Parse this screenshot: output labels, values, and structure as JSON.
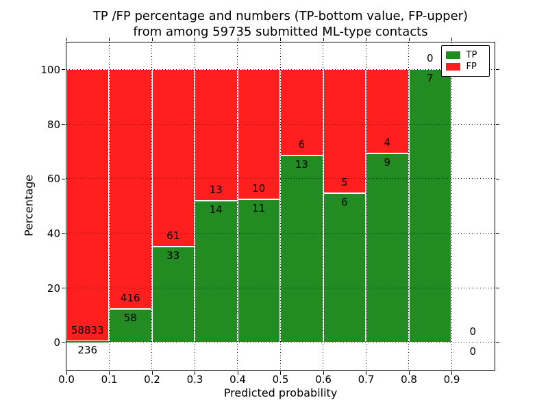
{
  "chart_data": {
    "type": "bar",
    "stacked": true,
    "title_line1": "TP /FP percentage and numbers (TP-bottom value, FP-upper)",
    "title_line2": "from among 59735 submitted ML-type contacts",
    "xlabel": "Predicted probability",
    "ylabel": "Percentage",
    "xlim": [
      0.0,
      1.0
    ],
    "ylim": [
      -10,
      110
    ],
    "xticks": [
      "0.0",
      "0.1",
      "0.2",
      "0.3",
      "0.4",
      "0.5",
      "0.6",
      "0.7",
      "0.8",
      "0.9"
    ],
    "xtick_values": [
      0.0,
      0.1,
      0.2,
      0.3,
      0.4,
      0.5,
      0.6,
      0.7,
      0.8,
      0.9
    ],
    "yticks": [
      0,
      20,
      40,
      60,
      80,
      100
    ],
    "grid": "dotted",
    "bar_width": 0.1,
    "colors": {
      "tp": "#228B22",
      "fp": "#FF1F1F"
    },
    "legend": [
      {
        "label": "TP",
        "color": "#228B22"
      },
      {
        "label": "FP",
        "color": "#FF1F1F"
      }
    ],
    "legend_position": "upper right",
    "annotation_note": "FP count above TP/FP boundary, TP count below boundary",
    "bins": [
      {
        "x0": 0.0,
        "tp": 236,
        "fp": 58833,
        "tp_pct": 0.4
      },
      {
        "x0": 0.1,
        "tp": 58,
        "fp": 416,
        "tp_pct": 12.24
      },
      {
        "x0": 0.2,
        "tp": 33,
        "fp": 61,
        "tp_pct": 35.11
      },
      {
        "x0": 0.3,
        "tp": 14,
        "fp": 13,
        "tp_pct": 51.85
      },
      {
        "x0": 0.4,
        "tp": 11,
        "fp": 10,
        "tp_pct": 52.38
      },
      {
        "x0": 0.5,
        "tp": 13,
        "fp": 6,
        "tp_pct": 68.42
      },
      {
        "x0": 0.6,
        "tp": 6,
        "fp": 5,
        "tp_pct": 54.55
      },
      {
        "x0": 0.7,
        "tp": 9,
        "fp": 4,
        "tp_pct": 69.23
      },
      {
        "x0": 0.8,
        "tp": 7,
        "fp": 0,
        "tp_pct": 100
      },
      {
        "x0": 0.9,
        "tp": 0,
        "fp": 0,
        "tp_pct": 0
      }
    ]
  }
}
